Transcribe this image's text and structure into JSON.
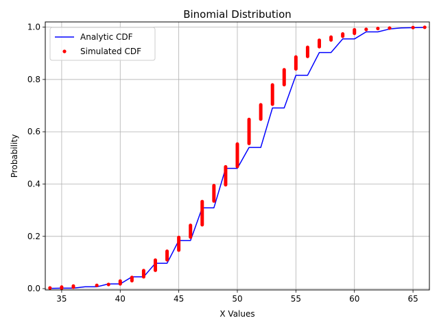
{
  "chart_data": {
    "type": "line",
    "title": "Binomial Distribution",
    "xlabel": "X Values",
    "ylabel": "Probability",
    "xlim": [
      33.6,
      66.4
    ],
    "ylim": [
      -0.005,
      1.02
    ],
    "xticks": [
      35,
      40,
      45,
      50,
      55,
      60,
      65
    ],
    "yticks": [
      0.0,
      0.2,
      0.4,
      0.6,
      0.8,
      1.0
    ],
    "xtick_labels": [
      "35",
      "40",
      "45",
      "50",
      "55",
      "60",
      "65"
    ],
    "ytick_labels": [
      "0.0",
      "0.2",
      "0.4",
      "0.6",
      "0.8",
      "1.0"
    ],
    "grid": true,
    "legend_position": "top-left",
    "series": [
      {
        "name": "Analytic CDF",
        "style": "line",
        "color": "#0000ff",
        "x": [
          34,
          35,
          36,
          37,
          38,
          39,
          40,
          41,
          42,
          43,
          44,
          45,
          46,
          47,
          48,
          49,
          50,
          51,
          52,
          53,
          54,
          55,
          56,
          57,
          58,
          59,
          60,
          61,
          62,
          63,
          64,
          65,
          66
        ],
        "y": [
          0.001,
          0.002,
          0.002,
          0.007,
          0.007,
          0.018,
          0.018,
          0.045,
          0.045,
          0.097,
          0.097,
          0.184,
          0.184,
          0.309,
          0.309,
          0.46,
          0.46,
          0.54,
          0.54,
          0.691,
          0.691,
          0.816,
          0.816,
          0.903,
          0.903,
          0.955,
          0.955,
          0.982,
          0.982,
          0.993,
          0.997,
          0.998,
          0.999
        ]
      },
      {
        "name": "Simulated CDF",
        "style": "markers",
        "color": "#ff0000",
        "segments": [
          {
            "x": 34,
            "y": [
              0.001,
              0.004
            ]
          },
          {
            "x": 35,
            "y": [
              0.002,
              0.006
            ]
          },
          {
            "x": 36,
            "y": [
              0.005,
              0.01
            ]
          },
          {
            "x": 38,
            "y": [
              0.011,
              0.014
            ]
          },
          {
            "x": 39,
            "y": [
              0.015,
              0.017
            ]
          },
          {
            "x": 40,
            "y": [
              0.018,
              0.029
            ]
          },
          {
            "x": 41,
            "y": [
              0.03,
              0.043
            ]
          },
          {
            "x": 42,
            "y": [
              0.045,
              0.069
            ]
          },
          {
            "x": 43,
            "y": [
              0.07,
              0.109
            ]
          },
          {
            "x": 44,
            "y": [
              0.11,
              0.143
            ]
          },
          {
            "x": 45,
            "y": [
              0.147,
              0.196
            ]
          },
          {
            "x": 46,
            "y": [
              0.197,
              0.242
            ]
          },
          {
            "x": 47,
            "y": [
              0.244,
              0.333
            ]
          },
          {
            "x": 48,
            "y": [
              0.335,
              0.394
            ]
          },
          {
            "x": 49,
            "y": [
              0.397,
              0.466
            ]
          },
          {
            "x": 50,
            "y": [
              0.467,
              0.553
            ]
          },
          {
            "x": 51,
            "y": [
              0.555,
              0.647
            ]
          },
          {
            "x": 52,
            "y": [
              0.648,
              0.703
            ]
          },
          {
            "x": 53,
            "y": [
              0.705,
              0.779
            ]
          },
          {
            "x": 54,
            "y": [
              0.78,
              0.837
            ]
          },
          {
            "x": 55,
            "y": [
              0.84,
              0.886
            ]
          },
          {
            "x": 56,
            "y": [
              0.888,
              0.923
            ]
          },
          {
            "x": 57,
            "y": [
              0.925,
              0.95
            ]
          },
          {
            "x": 58,
            "y": [
              0.951,
              0.962
            ]
          },
          {
            "x": 59,
            "y": [
              0.965,
              0.974
            ]
          },
          {
            "x": 60,
            "y": [
              0.976,
              0.99
            ]
          },
          {
            "x": 61,
            "y": [
              0.99,
              0.993
            ]
          },
          {
            "x": 62,
            "y": [
              0.994,
              0.996
            ]
          },
          {
            "x": 63,
            "y": [
              0.996,
              0.997
            ]
          },
          {
            "x": 65,
            "y": [
              0.998,
              0.999
            ]
          },
          {
            "x": 66,
            "y": [
              0.999,
              1.0
            ]
          }
        ]
      }
    ]
  }
}
